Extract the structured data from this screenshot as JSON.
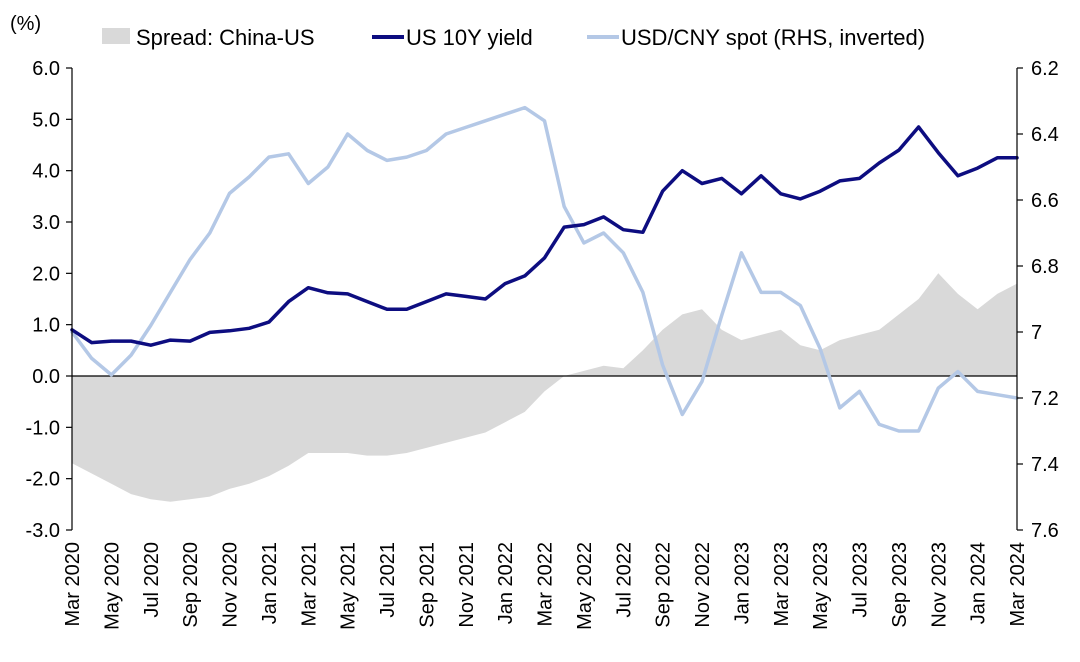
{
  "colors": {
    "spread": "#d9d9d9",
    "us10y": "#0d0d80",
    "usdcny": "#b4c8e6",
    "negative_tick": "#ff0000",
    "axis": "#000000"
  },
  "chart_data": {
    "type": "line",
    "unit_label": "(%)",
    "legend": [
      {
        "key": "spread",
        "label": "Spread: China-US",
        "style": "area"
      },
      {
        "key": "us10y",
        "label": "US 10Y yield",
        "style": "line"
      },
      {
        "key": "usdcny",
        "label": "USD/CNY spot (RHS, inverted)",
        "style": "line"
      }
    ],
    "legend_position": "top",
    "grid": false,
    "y_left": {
      "range": [
        -3.0,
        6.0
      ],
      "ticks": [
        {
          "v": 6.0,
          "label": "6.0"
        },
        {
          "v": 5.0,
          "label": "5.0"
        },
        {
          "v": 4.0,
          "label": "4.0"
        },
        {
          "v": 3.0,
          "label": "3.0"
        },
        {
          "v": 2.0,
          "label": "2.0"
        },
        {
          "v": 1.0,
          "label": "1.0"
        },
        {
          "v": 0.0,
          "label": "0.0"
        },
        {
          "v": -1.0,
          "label": "-1.0"
        },
        {
          "v": -2.0,
          "label": "-2.0"
        },
        {
          "v": -3.0,
          "label": "-3.0"
        }
      ]
    },
    "y_right": {
      "range": [
        6.2,
        7.6
      ],
      "inverted": true,
      "ticks": [
        {
          "v": 6.2,
          "label": "6.2"
        },
        {
          "v": 6.4,
          "label": "6.4"
        },
        {
          "v": 6.6,
          "label": "6.6"
        },
        {
          "v": 6.8,
          "label": "6.8"
        },
        {
          "v": 7.0,
          "label": "7"
        },
        {
          "v": 7.2,
          "label": "7.2"
        },
        {
          "v": 7.4,
          "label": "7.4"
        },
        {
          "v": 7.6,
          "label": "7.6"
        }
      ]
    },
    "x_range": [
      "2020-03",
      "2024-03"
    ],
    "x_ticks": [
      "Mar 2020",
      "May 2020",
      "Jul 2020",
      "Sep 2020",
      "Nov 2020",
      "Jan 2021",
      "Mar 2021",
      "May 2021",
      "Jul 2021",
      "Sep 2021",
      "Nov 2021",
      "Jan 2022",
      "Mar 2022",
      "May 2022",
      "Jul 2022",
      "Sep 2022",
      "Nov 2022",
      "Jan 2023",
      "Mar 2023",
      "May 2023",
      "Jul 2023",
      "Sep 2023",
      "Nov 2023",
      "Jan 2024",
      "Mar 2024"
    ],
    "series": [
      {
        "key": "spread",
        "name": "Spread: China-US",
        "axis": "left",
        "x": [
          "2020-03",
          "2020-04",
          "2020-05",
          "2020-06",
          "2020-07",
          "2020-08",
          "2020-09",
          "2020-10",
          "2020-11",
          "2020-12",
          "2021-01",
          "2021-02",
          "2021-03",
          "2021-04",
          "2021-05",
          "2021-06",
          "2021-07",
          "2021-08",
          "2021-09",
          "2021-10",
          "2021-11",
          "2021-12",
          "2022-01",
          "2022-02",
          "2022-03",
          "2022-04",
          "2022-05",
          "2022-06",
          "2022-07",
          "2022-08",
          "2022-09",
          "2022-10",
          "2022-11",
          "2022-12",
          "2023-01",
          "2023-02",
          "2023-03",
          "2023-04",
          "2023-05",
          "2023-06",
          "2023-07",
          "2023-08",
          "2023-09",
          "2023-10",
          "2023-11",
          "2023-12",
          "2024-01",
          "2024-02",
          "2024-03"
        ],
        "values": [
          -1.7,
          -1.9,
          -2.1,
          -2.3,
          -2.4,
          -2.45,
          -2.4,
          -2.35,
          -2.2,
          -2.1,
          -1.95,
          -1.75,
          -1.5,
          -1.5,
          -1.5,
          -1.55,
          -1.55,
          -1.5,
          -1.4,
          -1.3,
          -1.2,
          -1.1,
          -0.9,
          -0.7,
          -0.3,
          0.0,
          0.1,
          0.2,
          0.15,
          0.5,
          0.9,
          1.2,
          1.3,
          0.9,
          0.7,
          0.8,
          0.9,
          0.6,
          0.5,
          0.7,
          0.8,
          0.9,
          1.2,
          1.5,
          2.0,
          1.6,
          1.3,
          1.6,
          1.8
        ]
      },
      {
        "key": "us10y",
        "name": "US 10Y yield",
        "axis": "left",
        "x": [
          "2020-03",
          "2020-04",
          "2020-05",
          "2020-06",
          "2020-07",
          "2020-08",
          "2020-09",
          "2020-10",
          "2020-11",
          "2020-12",
          "2021-01",
          "2021-02",
          "2021-03",
          "2021-04",
          "2021-05",
          "2021-06",
          "2021-07",
          "2021-08",
          "2021-09",
          "2021-10",
          "2021-11",
          "2021-12",
          "2022-01",
          "2022-02",
          "2022-03",
          "2022-04",
          "2022-05",
          "2022-06",
          "2022-07",
          "2022-08",
          "2022-09",
          "2022-10",
          "2022-11",
          "2022-12",
          "2023-01",
          "2023-02",
          "2023-03",
          "2023-04",
          "2023-05",
          "2023-06",
          "2023-07",
          "2023-08",
          "2023-09",
          "2023-10",
          "2023-11",
          "2023-12",
          "2024-01",
          "2024-02",
          "2024-03"
        ],
        "values": [
          0.9,
          0.65,
          0.68,
          0.68,
          0.6,
          0.7,
          0.68,
          0.85,
          0.88,
          0.93,
          1.05,
          1.45,
          1.72,
          1.62,
          1.6,
          1.45,
          1.3,
          1.3,
          1.45,
          1.6,
          1.55,
          1.5,
          1.8,
          1.95,
          2.3,
          2.9,
          2.95,
          3.1,
          2.85,
          2.8,
          3.6,
          4.0,
          3.75,
          3.85,
          3.55,
          3.9,
          3.55,
          3.45,
          3.6,
          3.8,
          3.85,
          4.15,
          4.4,
          4.85,
          4.35,
          3.9,
          4.05,
          4.25,
          4.25
        ]
      },
      {
        "key": "usdcny",
        "name": "USD/CNY spot (RHS, inverted)",
        "axis": "right",
        "x": [
          "2020-03",
          "2020-04",
          "2020-05",
          "2020-06",
          "2020-07",
          "2020-08",
          "2020-09",
          "2020-10",
          "2020-11",
          "2020-12",
          "2021-01",
          "2021-02",
          "2021-03",
          "2021-04",
          "2021-05",
          "2021-06",
          "2021-07",
          "2021-08",
          "2021-09",
          "2021-10",
          "2021-11",
          "2021-12",
          "2022-01",
          "2022-02",
          "2022-03",
          "2022-04",
          "2022-05",
          "2022-06",
          "2022-07",
          "2022-08",
          "2022-09",
          "2022-10",
          "2022-11",
          "2022-12",
          "2023-01",
          "2023-02",
          "2023-03",
          "2023-04",
          "2023-05",
          "2023-06",
          "2023-07",
          "2023-08",
          "2023-09",
          "2023-10",
          "2023-11",
          "2023-12",
          "2024-01",
          "2024-02",
          "2024-03"
        ],
        "values": [
          7.0,
          7.08,
          7.13,
          7.07,
          6.98,
          6.88,
          6.78,
          6.7,
          6.58,
          6.53,
          6.47,
          6.46,
          6.55,
          6.5,
          6.4,
          6.45,
          6.48,
          6.47,
          6.45,
          6.4,
          6.38,
          6.36,
          6.34,
          6.32,
          6.36,
          6.62,
          6.73,
          6.7,
          6.76,
          6.88,
          7.1,
          7.25,
          7.15,
          6.95,
          6.76,
          6.88,
          6.88,
          6.92,
          7.05,
          7.23,
          7.18,
          7.28,
          7.3,
          7.3,
          7.17,
          7.12,
          7.18,
          7.19,
          7.2
        ]
      }
    ]
  }
}
